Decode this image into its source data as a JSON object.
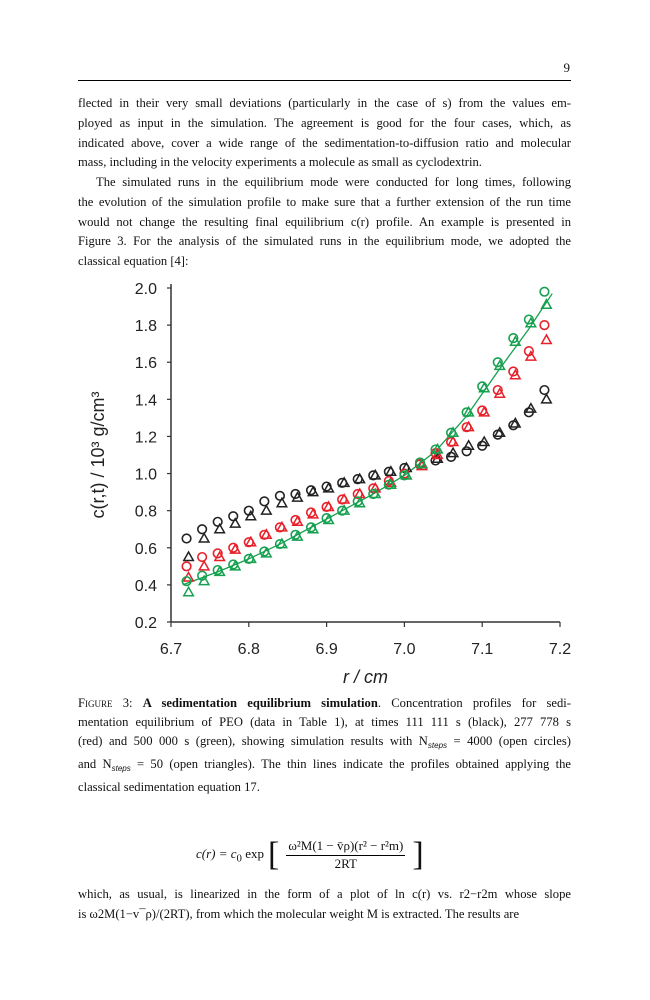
{
  "page_number": "9",
  "para1": [
    "flected in their very small deviations (particularly in the case of s) from the values em-",
    "ployed as input in the simulation.  The agreement is good for the four cases, which, as",
    "indicated above, cover a wide range of the sedimentation-to-diffusion ratio and molecular",
    "mass, including in the velocity experiments a molecule as small as cyclodextrin."
  ],
  "para2": [
    "The simulated runs in the equilibrium mode were conducted for long times, following",
    "the evolution of the simulation profile to make sure that a further extension of the run time",
    "would not change the resulting final equilibrium c(r) profile.  An example is presented in",
    "Figure 3. For the analysis of the simulated runs in the equilibrium mode, we adopted the",
    "classical equation [4]:"
  ],
  "caption": {
    "label": "Figure 3:",
    "title": "A sedimentation equilibrium simulation",
    "lines": [
      ". Concentration profiles for sedi-",
      "mentation equilibrium of PEO (data in Table 1), at times 111 111 s (black), 277 778 s",
      "(red) and 500 000 s (green), showing simulation results with N",
      " = 4000 (open circles)",
      "and N",
      " = 50 (open triangles). The thin lines indicate the profiles obtained applying the",
      "classical sedimentation equation 17."
    ],
    "sub": "steps"
  },
  "equation": {
    "lhs": "c(r) = c",
    "lhs_sub": "0",
    "fn": "exp",
    "numerator": "ω²M(1 − v̄ρ)(r² − r²m)",
    "denominator": "2RT"
  },
  "para3": [
    "which, as usual, is linearized in the form of a plot of ln c(r) vs. r2−r2m whose slope",
    "is ω2M(1−v¯ρ)/(2RT), from which the molecular weight M is extracted. The results are"
  ],
  "chart_data": {
    "type": "scatter",
    "xlabel": "r / cm",
    "ylabel": "c(r,t)  / 10³ g/cm³",
    "xlim": [
      6.7,
      7.2
    ],
    "ylim": [
      0.2,
      2.0
    ],
    "xticks": [
      "6.7",
      "6.8",
      "6.9",
      "7.0",
      "7.1",
      "7.2"
    ],
    "yticks": [
      "0.2",
      "0.4",
      "0.6",
      "0.8",
      "1.0",
      "1.2",
      "1.4",
      "1.6",
      "1.8",
      "2.0"
    ],
    "grid": false,
    "x": [
      6.72,
      6.74,
      6.76,
      6.78,
      6.8,
      6.82,
      6.84,
      6.86,
      6.88,
      6.9,
      6.92,
      6.94,
      6.96,
      6.98,
      7.0,
      7.02,
      7.04,
      7.06,
      7.08,
      7.1,
      7.12,
      7.14,
      7.16,
      7.18
    ],
    "series": [
      {
        "color": "#222222",
        "marker": "circle",
        "values": [
          0.65,
          0.7,
          0.74,
          0.77,
          0.8,
          0.85,
          0.88,
          0.89,
          0.91,
          0.93,
          0.95,
          0.97,
          0.99,
          1.01,
          1.03,
          1.05,
          1.07,
          1.09,
          1.12,
          1.15,
          1.21,
          1.26,
          1.33,
          1.45
        ]
      },
      {
        "color": "#222222",
        "marker": "triangle",
        "values": [
          0.55,
          0.65,
          0.7,
          0.73,
          0.77,
          0.8,
          0.84,
          0.87,
          0.9,
          0.92,
          0.95,
          0.97,
          0.99,
          1.01,
          1.03,
          1.05,
          1.08,
          1.11,
          1.15,
          1.17,
          1.22,
          1.27,
          1.35,
          1.4
        ]
      },
      {
        "color": "#e8202a",
        "marker": "circle",
        "values": [
          0.5,
          0.55,
          0.57,
          0.6,
          0.63,
          0.67,
          0.71,
          0.75,
          0.79,
          0.82,
          0.86,
          0.89,
          0.92,
          0.96,
          1.0,
          1.05,
          1.11,
          1.17,
          1.25,
          1.34,
          1.45,
          1.55,
          1.66,
          1.8
        ]
      },
      {
        "color": "#e8202a",
        "marker": "triangle",
        "values": [
          0.44,
          0.5,
          0.55,
          0.59,
          0.63,
          0.67,
          0.71,
          0.74,
          0.78,
          0.82,
          0.86,
          0.89,
          0.92,
          0.95,
          0.99,
          1.04,
          1.1,
          1.17,
          1.25,
          1.33,
          1.43,
          1.53,
          1.63,
          1.72
        ]
      },
      {
        "color": "#16a050",
        "marker": "circle",
        "values": [
          0.42,
          0.45,
          0.48,
          0.51,
          0.54,
          0.58,
          0.62,
          0.67,
          0.71,
          0.76,
          0.8,
          0.85,
          0.89,
          0.94,
          0.99,
          1.06,
          1.13,
          1.22,
          1.33,
          1.47,
          1.6,
          1.73,
          1.83,
          1.98
        ]
      },
      {
        "color": "#16a050",
        "marker": "triangle",
        "values": [
          0.36,
          0.42,
          0.47,
          0.5,
          0.54,
          0.57,
          0.62,
          0.66,
          0.7,
          0.75,
          0.8,
          0.84,
          0.89,
          0.94,
          0.99,
          1.05,
          1.13,
          1.22,
          1.33,
          1.46,
          1.58,
          1.71,
          1.81,
          1.91
        ]
      }
    ],
    "fit_lines": [
      {
        "color": "#16a050",
        "x": [
          6.715,
          6.76,
          6.8,
          6.84,
          6.88,
          6.92,
          6.96,
          7.0,
          7.04,
          7.08,
          7.12,
          7.16,
          7.19
        ],
        "y": [
          0.4,
          0.47,
          0.54,
          0.62,
          0.71,
          0.8,
          0.89,
          0.99,
          1.12,
          1.31,
          1.55,
          1.78,
          1.97
        ]
      }
    ]
  }
}
